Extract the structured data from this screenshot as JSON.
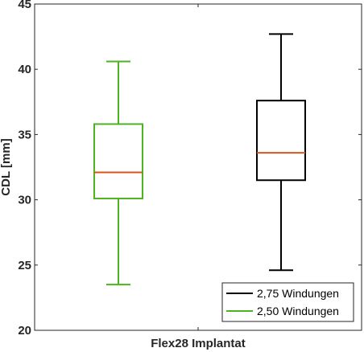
{
  "chart_data": {
    "type": "box",
    "xlabel": "Flex28 Implantat",
    "ylabel": "CDL [mm]",
    "ylim": [
      20,
      45
    ],
    "yticks": [
      "20",
      "25",
      "30",
      "35",
      "40",
      "45"
    ],
    "grid": false,
    "legend_position": "bottom-right",
    "legend": [
      {
        "label": "2,75 Windungen",
        "color": "#000000"
      },
      {
        "label": "2,50 Windungen",
        "color": "#4db31f"
      }
    ],
    "series": [
      {
        "name": "2,50 Windungen",
        "color": "#4db31f",
        "min": 23.5,
        "q1": 30.1,
        "median": 32.1,
        "q3": 35.8,
        "max": 40.6
      },
      {
        "name": "2,75 Windungen",
        "color": "#000000",
        "min": 24.6,
        "q1": 31.5,
        "median": 33.6,
        "q3": 37.6,
        "max": 42.7
      }
    ],
    "median_color": "#d95319"
  }
}
